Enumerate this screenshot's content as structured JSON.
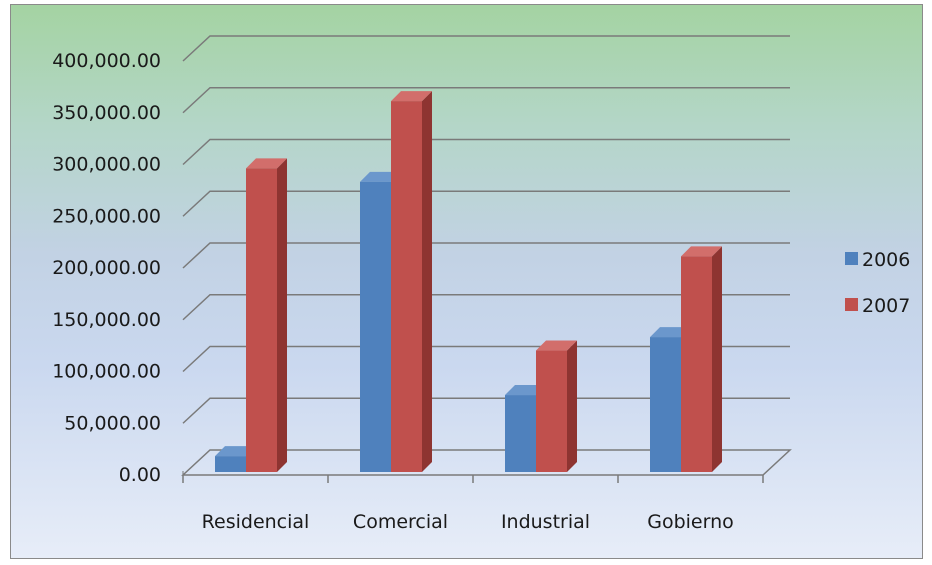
{
  "chart_data": {
    "type": "bar",
    "title": "",
    "xlabel": "",
    "ylabel": "",
    "categories": [
      "Residencial",
      "Comercial",
      "Industrial",
      "Gobierno"
    ],
    "series": [
      {
        "name": "2006",
        "values": [
          25000,
          290000,
          84000,
          140000
        ]
      },
      {
        "name": "2007",
        "values": [
          303000,
          368000,
          127000,
          218000
        ]
      }
    ],
    "y_tick_labels": [
      "0.00",
      "50,000.00",
      "100,000.00",
      "150,000.00",
      "200,000.00",
      "250,000.00",
      "300,000.00",
      "350,000.00",
      "400,000.00"
    ],
    "ylim": [
      0,
      400000
    ],
    "grid": true,
    "legend_position": "right",
    "three_d": true,
    "colors": {
      "2006": {
        "front": "#4f81bd",
        "side": "#3a6290",
        "top": "#6b97cc"
      },
      "2007": {
        "front": "#c0504d",
        "side": "#8e3431",
        "top": "#d26e6b"
      },
      "gridline": "#7a7a7a",
      "axis_text": "#1a1a1a"
    }
  }
}
